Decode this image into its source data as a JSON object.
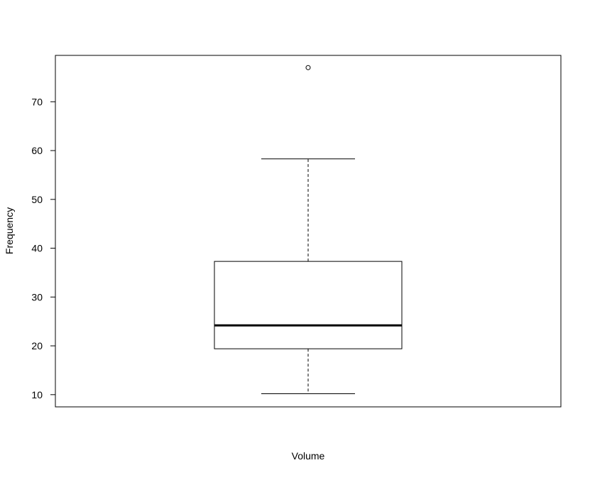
{
  "chart_data": {
    "type": "boxplot",
    "xlabel": "Volume",
    "ylabel": "Frequency",
    "ylim": [
      7.5,
      79.5
    ],
    "yticks": [
      10,
      20,
      30,
      40,
      50,
      60,
      70
    ],
    "grid": false,
    "box": {
      "whisker_low": 10.2,
      "q1": 19.4,
      "median": 24.2,
      "q3": 37.3,
      "whisker_high": 58.3,
      "outliers": [
        77
      ]
    },
    "colors": {
      "line": "#000000",
      "background": "#ffffff"
    }
  }
}
